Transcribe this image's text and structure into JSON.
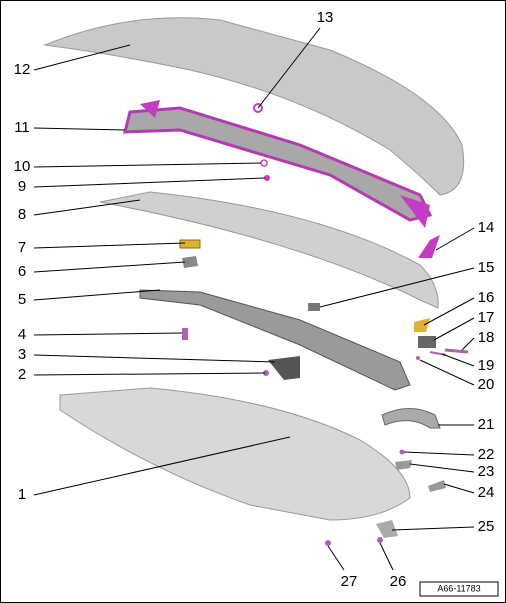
{
  "callouts": [
    {
      "label": "1"
    },
    {
      "label": "2"
    },
    {
      "label": "3"
    },
    {
      "label": "4"
    },
    {
      "label": "5"
    },
    {
      "label": "6"
    },
    {
      "label": "7"
    },
    {
      "label": "8"
    },
    {
      "label": "9"
    },
    {
      "label": "10"
    },
    {
      "label": "11"
    },
    {
      "label": "12"
    },
    {
      "label": "13"
    },
    {
      "label": "14"
    },
    {
      "label": "15"
    },
    {
      "label": "16"
    },
    {
      "label": "17"
    },
    {
      "label": "18"
    },
    {
      "label": "19"
    },
    {
      "label": "20"
    },
    {
      "label": "21"
    },
    {
      "label": "22"
    },
    {
      "label": "23"
    },
    {
      "label": "24"
    },
    {
      "label": "25"
    },
    {
      "label": "26"
    },
    {
      "label": "27"
    }
  ],
  "reference": "A66-11783"
}
